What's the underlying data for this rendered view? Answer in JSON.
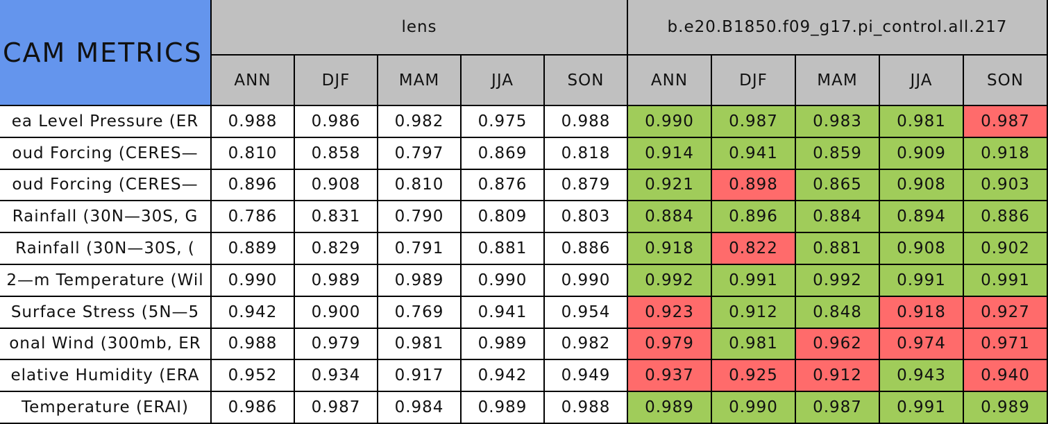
{
  "table": {
    "title": "CAM METRICS",
    "groups": [
      "lens",
      "b.e20.B1850.f09_g17.pi_control.all.217"
    ],
    "seasons": [
      "ANN",
      "DJF",
      "MAM",
      "JJA",
      "SON"
    ],
    "colors": {
      "good": "#a0cc5a",
      "bad": "#ff6b6b"
    },
    "rows": [
      {
        "label": "ea Level Pressure (ER",
        "lens": [
          "0.988",
          "0.986",
          "0.982",
          "0.975",
          "0.988"
        ],
        "control": [
          "0.990",
          "0.987",
          "0.983",
          "0.981",
          "0.987"
        ],
        "status": [
          "good",
          "good",
          "good",
          "good",
          "bad"
        ]
      },
      {
        "label": "oud Forcing (CERES—",
        "lens": [
          "0.810",
          "0.858",
          "0.797",
          "0.869",
          "0.818"
        ],
        "control": [
          "0.914",
          "0.941",
          "0.859",
          "0.909",
          "0.918"
        ],
        "status": [
          "good",
          "good",
          "good",
          "good",
          "good"
        ]
      },
      {
        "label": "oud Forcing (CERES—",
        "lens": [
          "0.896",
          "0.908",
          "0.810",
          "0.876",
          "0.879"
        ],
        "control": [
          "0.921",
          "0.898",
          "0.865",
          "0.908",
          "0.903"
        ],
        "status": [
          "good",
          "bad",
          "good",
          "good",
          "good"
        ]
      },
      {
        "label": "Rainfall (30N—30S, G",
        "lens": [
          "0.786",
          "0.831",
          "0.790",
          "0.809",
          "0.803"
        ],
        "control": [
          "0.884",
          "0.896",
          "0.884",
          "0.894",
          "0.886"
        ],
        "status": [
          "good",
          "good",
          "good",
          "good",
          "good"
        ]
      },
      {
        "label": "Rainfall (30N—30S, (",
        "lens": [
          "0.889",
          "0.829",
          "0.791",
          "0.881",
          "0.886"
        ],
        "control": [
          "0.918",
          "0.822",
          "0.881",
          "0.908",
          "0.902"
        ],
        "status": [
          "good",
          "bad",
          "good",
          "good",
          "good"
        ]
      },
      {
        "label": "2—m Temperature (Wil",
        "lens": [
          "0.990",
          "0.989",
          "0.989",
          "0.990",
          "0.990"
        ],
        "control": [
          "0.992",
          "0.991",
          "0.992",
          "0.991",
          "0.991"
        ],
        "status": [
          "good",
          "good",
          "good",
          "good",
          "good"
        ]
      },
      {
        "label": "Surface Stress (5N—5",
        "lens": [
          "0.942",
          "0.900",
          "0.769",
          "0.941",
          "0.954"
        ],
        "control": [
          "0.923",
          "0.912",
          "0.848",
          "0.918",
          "0.927"
        ],
        "status": [
          "bad",
          "good",
          "good",
          "bad",
          "bad"
        ]
      },
      {
        "label": "onal Wind (300mb, ER",
        "lens": [
          "0.988",
          "0.979",
          "0.981",
          "0.989",
          "0.982"
        ],
        "control": [
          "0.979",
          "0.981",
          "0.962",
          "0.974",
          "0.971"
        ],
        "status": [
          "bad",
          "good",
          "bad",
          "bad",
          "bad"
        ]
      },
      {
        "label": "elative Humidity (ERA",
        "lens": [
          "0.952",
          "0.934",
          "0.917",
          "0.942",
          "0.949"
        ],
        "control": [
          "0.937",
          "0.925",
          "0.912",
          "0.943",
          "0.940"
        ],
        "status": [
          "bad",
          "bad",
          "bad",
          "good",
          "bad"
        ]
      },
      {
        "label": "Temperature (ERAI)",
        "lens": [
          "0.986",
          "0.987",
          "0.984",
          "0.989",
          "0.988"
        ],
        "control": [
          "0.989",
          "0.990",
          "0.987",
          "0.991",
          "0.989"
        ],
        "status": [
          "good",
          "good",
          "good",
          "good",
          "good"
        ]
      }
    ]
  }
}
